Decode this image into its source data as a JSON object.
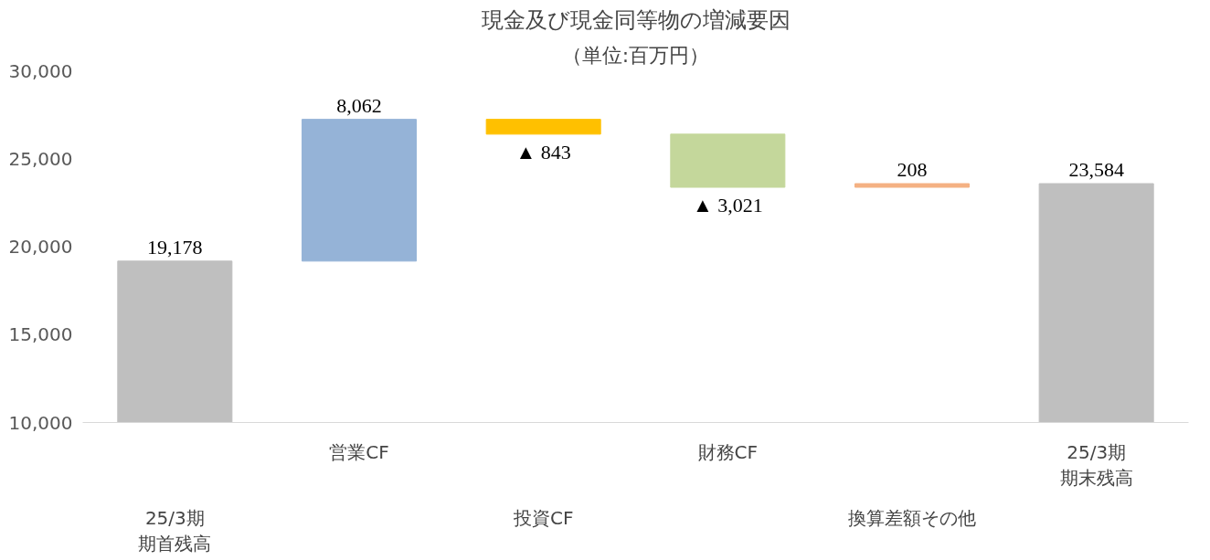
{
  "chart_data": {
    "type": "bar",
    "title": "現金及び現金同等物の増減要因",
    "subtitle": "（単位:百万円）",
    "categories": [
      "25/3期期首残高",
      "営業CF",
      "投資CF",
      "財務CF",
      "換算差額その他",
      "25/3期期末残高"
    ],
    "values": [
      19178,
      8062,
      -843,
      -3021,
      208,
      23584
    ],
    "base": [
      0,
      19178,
      27240,
      26397,
      23376,
      0
    ],
    "colors": [
      "#bfbfbf",
      "#95b3d7",
      "#ffc000",
      "#c4d79b",
      "#f4b183",
      "#bfbfbf"
    ],
    "value_labels": [
      "19,178",
      "8,062",
      "▲ 843",
      "▲ 3,021",
      "208",
      "23,584"
    ],
    "ylim": [
      10000,
      30000
    ],
    "yticks": [
      {
        "value": 10000,
        "label": "10,000"
      },
      {
        "value": 15000,
        "label": "15,000"
      },
      {
        "value": 20000,
        "label": "20,000"
      },
      {
        "value": 25000,
        "label": "25,000"
      },
      {
        "value": 30000,
        "label": "30,000"
      }
    ],
    "grid": false
  }
}
